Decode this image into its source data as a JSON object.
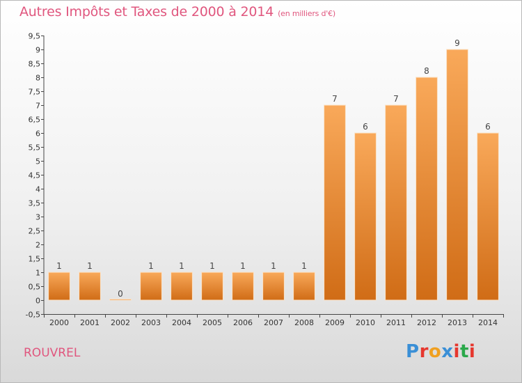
{
  "header": {
    "title": "Autres Impôts et Taxes de 2000 à 2014",
    "unit": "(en milliers d'€)"
  },
  "footer": {
    "commune": "ROUVREL",
    "logo_text": "Proxiti",
    "logo_colors": [
      "#3a8fd6",
      "#e6372e",
      "#f0a020",
      "#3a8fd6",
      "#e6372e",
      "#2aa84a",
      "#e6372e"
    ]
  },
  "colors": {
    "bar_light": "#f9a95a",
    "bar_dark": "#d06c16",
    "title": "#e0567e"
  },
  "chart_data": {
    "type": "bar",
    "categories": [
      "2000",
      "2001",
      "2002",
      "2003",
      "2004",
      "2005",
      "2006",
      "2007",
      "2008",
      "2009",
      "2010",
      "2011",
      "2012",
      "2013",
      "2014"
    ],
    "values": [
      1,
      1,
      0,
      1,
      1,
      1,
      1,
      1,
      1,
      7,
      6,
      7,
      8,
      9,
      6
    ],
    "value_labels": [
      "1",
      "1",
      "0",
      "1",
      "1",
      "1",
      "1",
      "1",
      "1",
      "7",
      "6",
      "7",
      "8",
      "9",
      "6"
    ],
    "ylim": [
      -0.5,
      9.5
    ],
    "yticks": [
      -0.5,
      0,
      0.5,
      1,
      1.5,
      2,
      2.5,
      3,
      3.5,
      4,
      4.5,
      5,
      5.5,
      6,
      6.5,
      7,
      7.5,
      8,
      8.5,
      9,
      9.5
    ],
    "ytick_labels": [
      "-0,5",
      "0",
      "0,5",
      "1",
      "1,5",
      "2",
      "2,5",
      "3",
      "3,5",
      "4",
      "4,5",
      "5",
      "5,5",
      "6",
      "6,5",
      "7",
      "7,5",
      "8",
      "8,5",
      "9",
      "9,5"
    ],
    "grid": false
  }
}
